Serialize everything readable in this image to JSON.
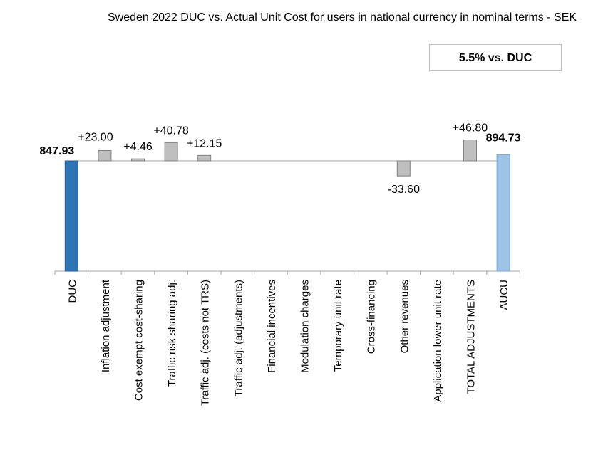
{
  "title": "Sweden 2022 DUC vs. Actual Unit Cost for users in national currency in nominal terms - SEK",
  "badge": "5.5% vs. DUC",
  "colors": {
    "duc": "#2e75b6",
    "aucu": "#9dc3e6",
    "adjustment": "#bfbfbf",
    "adjustment_border": "#808080",
    "line": "#a6a6a6"
  },
  "chart_data": {
    "type": "bar",
    "subtype": "waterfall",
    "title": "Sweden 2022 DUC vs. Actual Unit Cost for users in national currency in nominal terms - SEK",
    "categories": [
      "DUC",
      "Inflation adjustment",
      "Cost exempt cost-sharing",
      "Traffic risk sharing adj.",
      "Traffic adj. (costs not TRS)",
      "Traffic adj. (adjustments)",
      "Financial incentives",
      "Modulation charges",
      "Temporary unit rate",
      "Cross-financing",
      "Other revenues",
      "Application lower unit rate",
      "TOTAL ADJUSTMENTS",
      "AUCU"
    ],
    "values": [
      847.93,
      23.0,
      4.46,
      40.78,
      12.15,
      null,
      null,
      null,
      null,
      null,
      -33.6,
      null,
      46.8,
      894.73
    ],
    "labels": [
      "847.93",
      "+23.00",
      "+4.46",
      "+40.78",
      "+12.15",
      "",
      "",
      "",
      "",
      "",
      "-33.60",
      "",
      "+46.80",
      "894.73"
    ],
    "kinds": [
      "total",
      "delta",
      "delta",
      "delta",
      "delta",
      "delta",
      "delta",
      "delta",
      "delta",
      "delta",
      "delta",
      "delta",
      "delta",
      "total"
    ],
    "baseline": 847.93,
    "xlabel": "",
    "ylabel": "",
    "legend": "none",
    "grid": false
  }
}
